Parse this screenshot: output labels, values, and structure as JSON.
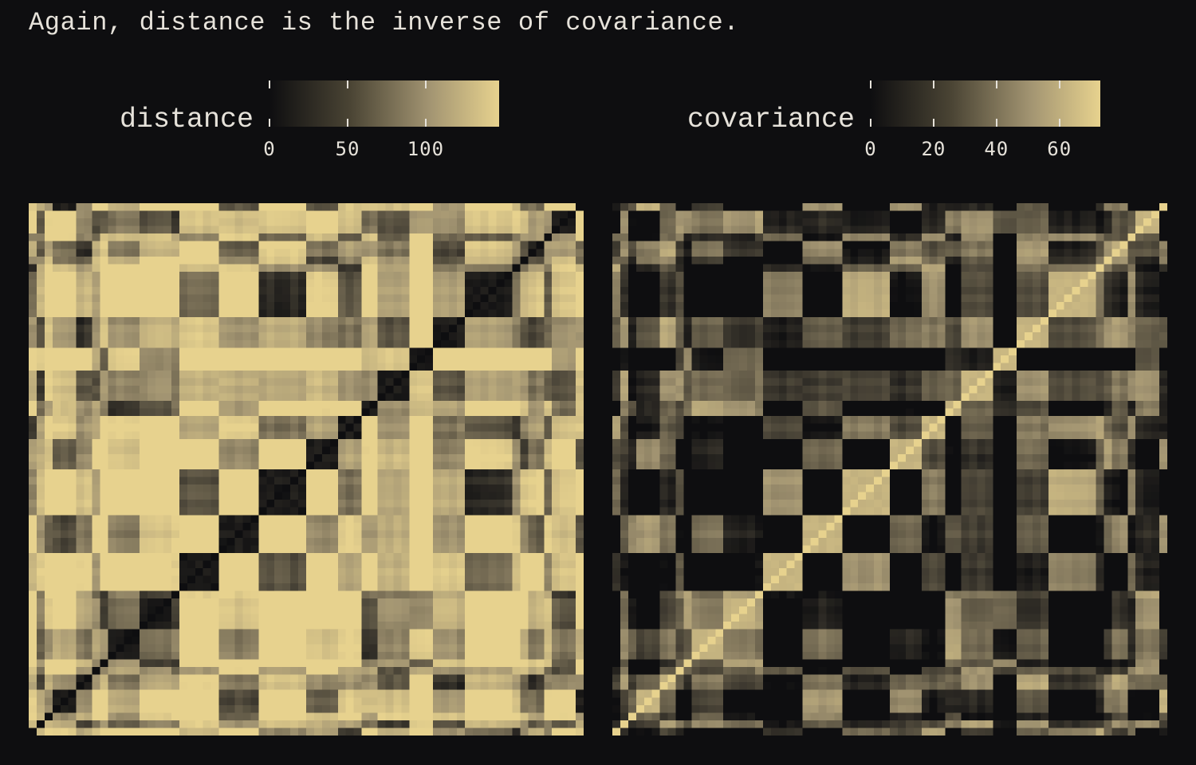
{
  "title": "Again, distance is the inverse of covariance.",
  "chart_data": [
    {
      "type": "heatmap",
      "name": "distance",
      "legend_label": "distance",
      "colorbar": {
        "ticks": [
          0,
          50,
          100
        ],
        "range": [
          0,
          147
        ]
      },
      "cells": 70,
      "colors": {
        "low": "#0e0e10",
        "mid": "#a39572",
        "high": "#e7d28e"
      }
    },
    {
      "type": "heatmap",
      "name": "covariance",
      "legend_label": "covariance",
      "colorbar": {
        "ticks": [
          0,
          20,
          40,
          60
        ],
        "range": [
          0,
          73
        ]
      },
      "cells": 70,
      "colors": {
        "low": "#0e0e10",
        "mid": "#a39572",
        "high": "#e7d28e"
      }
    }
  ]
}
